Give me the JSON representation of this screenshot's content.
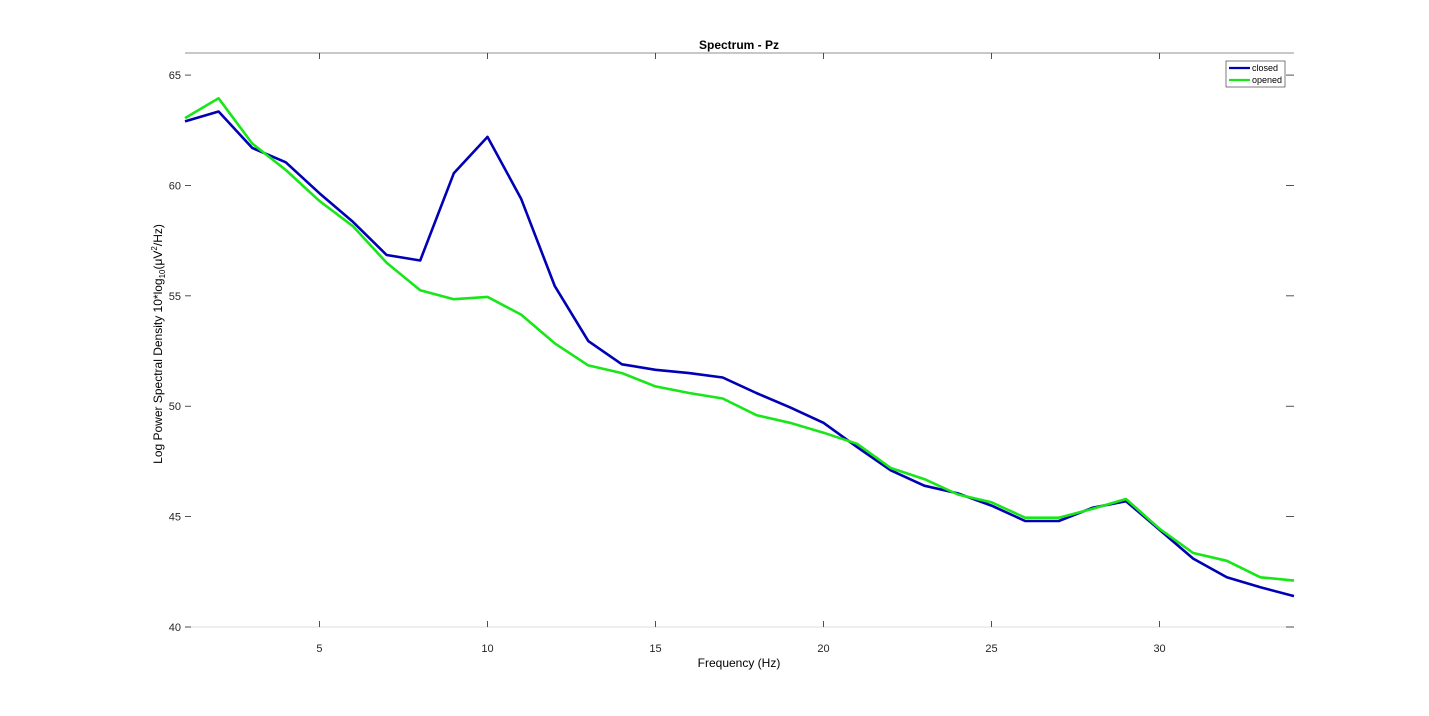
{
  "chart_data": {
    "type": "line",
    "title": "Spectrum - Pz",
    "xlabel": "Frequency (Hz)",
    "ylabel": "Log Power Spectral Density 10*log10(μV2/Hz)",
    "ylabel_parts": {
      "main": "Log Power Spectral Density 10*log",
      "sub": "10",
      "mid": "(μV",
      "sup": "2",
      "end": "/Hz)"
    },
    "xlim": [
      1,
      34
    ],
    "ylim": [
      40,
      66
    ],
    "xticks": [
      5,
      10,
      15,
      20,
      25,
      30
    ],
    "yticks": [
      40,
      45,
      50,
      55,
      60,
      65
    ],
    "legend_position": "top-right",
    "x": [
      1,
      2,
      3,
      4,
      5,
      6,
      7,
      8,
      9,
      10,
      11,
      12,
      13,
      14,
      15,
      16,
      17,
      18,
      19,
      20,
      21,
      22,
      23,
      24,
      25,
      26,
      27,
      28,
      29,
      30,
      31,
      32,
      33,
      34
    ],
    "series": [
      {
        "name": "closed",
        "color": "#0000b4",
        "values": [
          62.9,
          63.35,
          61.7,
          61.05,
          59.65,
          58.35,
          56.85,
          56.6,
          60.55,
          62.2,
          59.4,
          55.45,
          52.95,
          51.9,
          51.65,
          51.5,
          51.3,
          50.6,
          49.95,
          49.25,
          48.15,
          47.1,
          46.4,
          46.05,
          45.5,
          44.8,
          44.8,
          45.4,
          45.7,
          44.4,
          43.1,
          42.25,
          41.8,
          41.4
        ]
      },
      {
        "name": "opened",
        "color": "#19e619",
        "values": [
          63.05,
          63.95,
          61.9,
          60.7,
          59.3,
          58.15,
          56.5,
          55.25,
          54.85,
          54.95,
          54.15,
          52.85,
          51.85,
          51.5,
          50.9,
          50.6,
          50.35,
          49.6,
          49.25,
          48.8,
          48.3,
          47.2,
          46.7,
          46.0,
          45.65,
          44.95,
          44.95,
          45.35,
          45.8,
          44.45,
          43.35,
          43.0,
          42.25,
          42.1
        ]
      }
    ]
  }
}
